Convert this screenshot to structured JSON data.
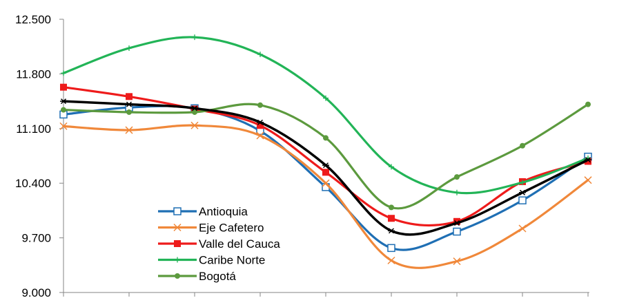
{
  "chart_data": {
    "type": "line",
    "title": "",
    "xlabel": "",
    "ylabel": "",
    "ylim": [
      9000,
      12500
    ],
    "yticks": [
      {
        "value": 9000,
        "label": "9.000"
      },
      {
        "value": 9700,
        "label": "9.700"
      },
      {
        "value": 10400,
        "label": "10.400"
      },
      {
        "value": 11100,
        "label": "11.100"
      },
      {
        "value": 11800,
        "label": "11.800"
      },
      {
        "value": 12500,
        "label": "12.500"
      }
    ],
    "grid": false,
    "legend_position": "bottom-left",
    "x_count": 9,
    "series": [
      {
        "name": "Antioquia",
        "color": "#1f6fb4",
        "marker": "square-open",
        "values": [
          11280,
          11370,
          11360,
          11070,
          10350,
          9570,
          9780,
          10180,
          10740
        ]
      },
      {
        "name": "Eje Cafetero",
        "color": "#f0883a",
        "marker": "x",
        "values": [
          11130,
          11080,
          11140,
          11010,
          10400,
          9410,
          9400,
          9820,
          10440
        ]
      },
      {
        "name": "Valle del Cauca",
        "color": "#ee1b1b",
        "marker": "square-filled",
        "values": [
          11630,
          11510,
          11350,
          11140,
          10540,
          9950,
          9910,
          10420,
          10680
        ]
      },
      {
        "name": "Caribe Norte",
        "color": "#22b457",
        "marker": "plus",
        "values": [
          11810,
          12130,
          12270,
          12050,
          11490,
          10610,
          10280,
          10410,
          10720
        ]
      },
      {
        "name": "Bogotá",
        "color": "#5c9a3e",
        "marker": "circle",
        "values": [
          11340,
          11310,
          11310,
          11400,
          10980,
          10090,
          10480,
          10880,
          11410
        ]
      },
      {
        "name": "",
        "color": "#000000",
        "marker": "star",
        "in_legend": false,
        "values": [
          11450,
          11410,
          11360,
          11180,
          10630,
          9790,
          9890,
          10280,
          10700
        ]
      }
    ]
  }
}
